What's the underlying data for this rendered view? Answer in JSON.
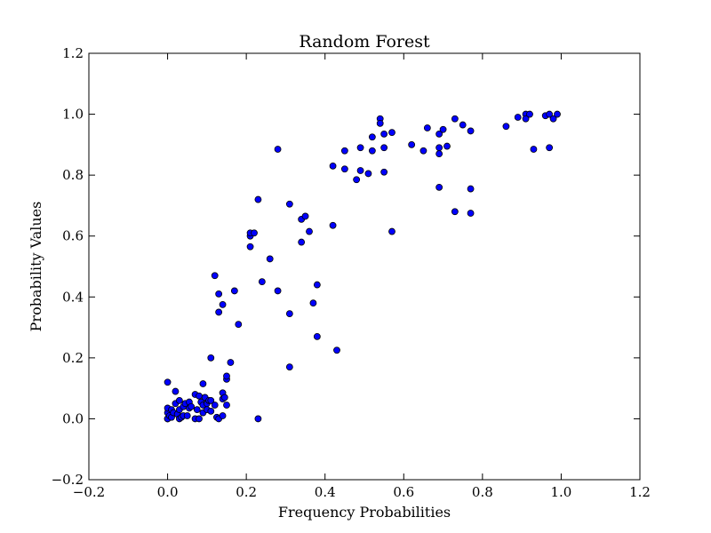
{
  "chart_data": {
    "type": "scatter",
    "title": "Random Forest",
    "xlabel": "Frequency Probabilities",
    "ylabel": "Probability Values",
    "xlim": [
      -0.2,
      1.2
    ],
    "ylim": [
      -0.2,
      1.2
    ],
    "xticks": [
      "−0.2",
      "0.0",
      "0.2",
      "0.4",
      "0.6",
      "0.8",
      "1.0",
      "1.2"
    ],
    "yticks": [
      "−0.2",
      "0.0",
      "0.2",
      "0.4",
      "0.6",
      "0.8",
      "1.0",
      "1.2"
    ],
    "grid": false,
    "marker_color": "#0000ff",
    "x": [
      0.0,
      0.0,
      0.0,
      0.0,
      0.0,
      0.005,
      0.01,
      0.01,
      0.015,
      0.02,
      0.02,
      0.025,
      0.03,
      0.03,
      0.03,
      0.035,
      0.04,
      0.04,
      0.045,
      0.05,
      0.055,
      0.055,
      0.06,
      0.07,
      0.07,
      0.075,
      0.08,
      0.08,
      0.085,
      0.09,
      0.09,
      0.09,
      0.095,
      0.1,
      0.1,
      0.105,
      0.11,
      0.11,
      0.12,
      0.125,
      0.13,
      0.14,
      0.14,
      0.14,
      0.145,
      0.15,
      0.15,
      0.15,
      0.16,
      0.11,
      0.12,
      0.13,
      0.13,
      0.14,
      0.17,
      0.18,
      0.21,
      0.21,
      0.21,
      0.22,
      0.23,
      0.23,
      0.24,
      0.26,
      0.28,
      0.28,
      0.31,
      0.31,
      0.31,
      0.34,
      0.34,
      0.35,
      0.36,
      0.37,
      0.38,
      0.38,
      0.42,
      0.42,
      0.43,
      0.45,
      0.45,
      0.48,
      0.49,
      0.49,
      0.51,
      0.52,
      0.52,
      0.54,
      0.54,
      0.55,
      0.55,
      0.55,
      0.57,
      0.57,
      0.62,
      0.65,
      0.66,
      0.69,
      0.69,
      0.69,
      0.69,
      0.7,
      0.71,
      0.73,
      0.73,
      0.75,
      0.77,
      0.77,
      0.77,
      0.86,
      0.89,
      0.91,
      0.91,
      0.92,
      0.93,
      0.96,
      0.97,
      0.97,
      0.98,
      0.99
    ],
    "y": [
      0.0,
      0.02,
      0.035,
      0.12,
      0.0,
      0.01,
      0.005,
      0.03,
      0.02,
      0.09,
      0.05,
      0.015,
      0.0,
      0.03,
      0.06,
      0.005,
      0.01,
      0.04,
      0.05,
      0.01,
      0.035,
      0.055,
      0.04,
      0.0,
      0.08,
      0.03,
      0.0,
      0.075,
      0.055,
      0.02,
      0.045,
      0.115,
      0.07,
      0.03,
      0.05,
      0.06,
      0.025,
      0.06,
      0.045,
      0.005,
      0.0,
      0.01,
      0.065,
      0.085,
      0.07,
      0.045,
      0.13,
      0.14,
      0.185,
      0.2,
      0.47,
      0.41,
      0.35,
      0.375,
      0.42,
      0.31,
      0.6,
      0.61,
      0.565,
      0.61,
      0.72,
      0.0,
      0.45,
      0.525,
      0.885,
      0.42,
      0.705,
      0.345,
      0.17,
      0.655,
      0.58,
      0.665,
      0.615,
      0.38,
      0.44,
      0.27,
      0.83,
      0.635,
      0.225,
      0.88,
      0.82,
      0.785,
      0.89,
      0.815,
      0.805,
      0.925,
      0.88,
      0.985,
      0.97,
      0.935,
      0.89,
      0.81,
      0.94,
      0.615,
      0.9,
      0.88,
      0.955,
      0.935,
      0.89,
      0.87,
      0.76,
      0.95,
      0.895,
      0.985,
      0.68,
      0.965,
      0.945,
      0.755,
      0.675,
      0.96,
      0.99,
      1.0,
      0.985,
      1.0,
      0.885,
      0.995,
      1.0,
      0.89,
      0.985,
      1.0
    ]
  }
}
